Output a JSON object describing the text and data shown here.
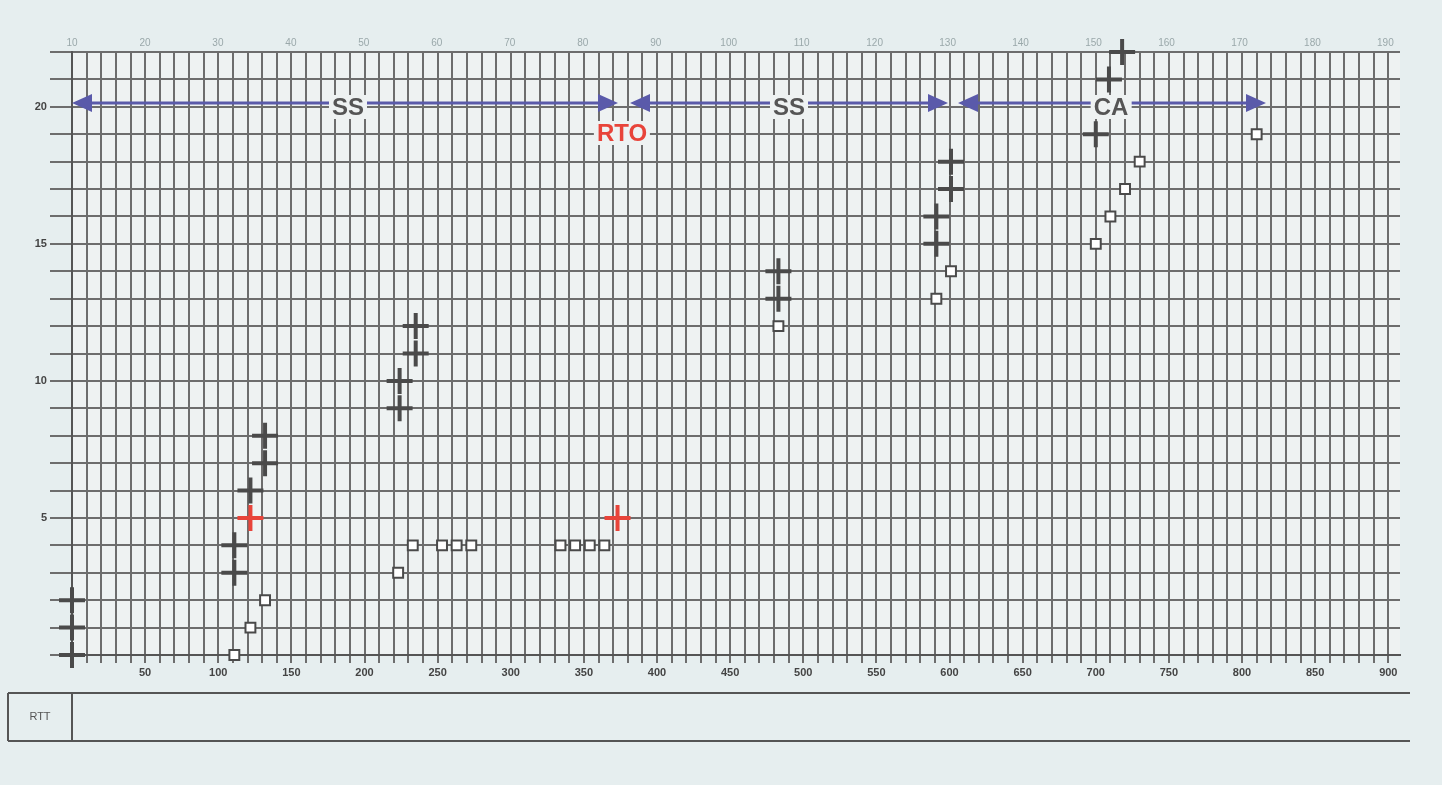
{
  "chart_data": {
    "type": "scatter",
    "xlim": [
      0,
      908
    ],
    "xticks": [
      {
        "value": 0,
        "label": null
      },
      {
        "value": 10,
        "label": null
      },
      {
        "value": 20,
        "label": null
      },
      {
        "value": 30,
        "label": null
      },
      {
        "value": 40,
        "label": null
      },
      50,
      {
        "value": 60,
        "label": null
      },
      {
        "value": 70,
        "label": null
      },
      {
        "value": 80,
        "label": null
      },
      {
        "value": 90,
        "label": null
      },
      100,
      {
        "value": 110,
        "label": null
      },
      {
        "value": 120,
        "label": null
      },
      {
        "value": 130,
        "label": null
      },
      {
        "value": 140,
        "label": null
      },
      150,
      {
        "value": 160,
        "label": null
      },
      {
        "value": 170,
        "label": null
      },
      {
        "value": 180,
        "label": null
      },
      {
        "value": 190,
        "label": null
      },
      200,
      {
        "value": 210,
        "label": null
      },
      {
        "value": 220,
        "label": null
      },
      {
        "value": 230,
        "label": null
      },
      {
        "value": 240,
        "label": null
      },
      250,
      {
        "value": 260,
        "label": null
      },
      {
        "value": 270,
        "label": null
      },
      {
        "value": 280,
        "label": null
      },
      {
        "value": 290,
        "label": null
      },
      300,
      {
        "value": 310,
        "label": null
      },
      {
        "value": 320,
        "label": null
      },
      {
        "value": 330,
        "label": null
      },
      {
        "value": 340,
        "label": null
      },
      350,
      {
        "value": 360,
        "label": null
      },
      {
        "value": 370,
        "label": null
      },
      {
        "value": 380,
        "label": null
      },
      {
        "value": 390,
        "label": null
      },
      400,
      {
        "value": 410,
        "label": null
      },
      {
        "value": 420,
        "label": null
      },
      {
        "value": 430,
        "label": null
      },
      {
        "value": 440,
        "label": null
      },
      450,
      {
        "value": 460,
        "label": null
      },
      {
        "value": 470,
        "label": null
      },
      {
        "value": 480,
        "label": null
      },
      {
        "value": 490,
        "label": null
      },
      500,
      {
        "value": 510,
        "label": null
      },
      {
        "value": 520,
        "label": null
      },
      {
        "value": 530,
        "label": null
      },
      {
        "value": 540,
        "label": null
      },
      550,
      {
        "value": 560,
        "label": null
      },
      {
        "value": 570,
        "label": null
      },
      {
        "value": 580,
        "label": null
      },
      {
        "value": 590,
        "label": null
      },
      600,
      {
        "value": 610,
        "label": null
      },
      {
        "value": 620,
        "label": null
      },
      {
        "value": 630,
        "label": null
      },
      {
        "value": 640,
        "label": null
      },
      650,
      {
        "value": 660,
        "label": null
      },
      {
        "value": 670,
        "label": null
      },
      {
        "value": 680,
        "label": null
      },
      {
        "value": 690,
        "label": null
      },
      700,
      {
        "value": 710,
        "label": null
      },
      {
        "value": 720,
        "label": null
      },
      {
        "value": 730,
        "label": null
      },
      {
        "value": 740,
        "label": null
      },
      750,
      {
        "value": 760,
        "label": null
      },
      {
        "value": 770,
        "label": null
      },
      {
        "value": 780,
        "label": null
      },
      {
        "value": 790,
        "label": null
      },
      800,
      {
        "value": 810,
        "label": null
      },
      {
        "value": 820,
        "label": null
      },
      {
        "value": 830,
        "label": null
      },
      {
        "value": 840,
        "label": null
      },
      850,
      {
        "value": 860,
        "label": null
      },
      {
        "value": 870,
        "label": null
      },
      {
        "value": 880,
        "label": null
      },
      {
        "value": 890,
        "label": null
      },
      900
    ],
    "ylim": [
      0,
      22
    ],
    "yticks": [
      {
        "value": 0,
        "label": null
      },
      {
        "value": 1,
        "label": null
      },
      {
        "value": 2,
        "label": null
      },
      {
        "value": 3,
        "label": null
      },
      {
        "value": 4,
        "label": null
      },
      5,
      {
        "value": 6,
        "label": null
      },
      {
        "value": 7,
        "label": null
      },
      {
        "value": 8,
        "label": null
      },
      {
        "value": 9,
        "label": null
      },
      10,
      {
        "value": 11,
        "label": null
      },
      {
        "value": 12,
        "label": null
      },
      {
        "value": 13,
        "label": null
      },
      {
        "value": 14,
        "label": null
      },
      15,
      {
        "value": 16,
        "label": null
      },
      {
        "value": 17,
        "label": null
      },
      {
        "value": 18,
        "label": null
      },
      {
        "value": 19,
        "label": null
      },
      20,
      {
        "value": 21,
        "label": null
      },
      {
        "value": 22,
        "label": null
      }
    ],
    "x2lim": [
      10,
      192
    ],
    "x2ticks": [
      10,
      20,
      30,
      40,
      50,
      60,
      70,
      80,
      90,
      100,
      110,
      120,
      130,
      140,
      150,
      160,
      170,
      180,
      190
    ],
    "grid": true,
    "legend": false,
    "series": [
      {
        "color": "#4a4a4a",
        "marker": "cross",
        "x": [
          0,
          0,
          0,
          111,
          111,
          122,
          132,
          132,
          224,
          224,
          235,
          235,
          483,
          483,
          591,
          591,
          601,
          601,
          700,
          709,
          718
        ],
        "values": [
          0,
          1,
          2,
          3,
          4,
          6,
          7,
          8,
          9,
          10,
          11,
          12,
          13,
          14,
          15,
          16,
          17,
          18,
          19,
          21,
          22
        ]
      },
      {
        "color": "#e8443a",
        "marker": "cross",
        "x": [
          122,
          373
        ],
        "values": [
          5,
          5
        ]
      },
      {
        "color": "#4a4a4a",
        "marker": "square",
        "x": [
          111,
          122,
          132,
          223,
          233,
          253,
          263,
          273,
          334,
          344,
          354,
          364,
          483,
          591,
          601,
          700,
          710,
          720,
          730,
          810
        ],
        "values": [
          0,
          1,
          2,
          3,
          4,
          4,
          4,
          4,
          4,
          4,
          4,
          4,
          12,
          13,
          14,
          15,
          16,
          17,
          18,
          19
        ]
      }
    ],
    "annotations": [
      "SS",
      "SS",
      "CA",
      "RTO",
      "RTT"
    ]
  }
}
